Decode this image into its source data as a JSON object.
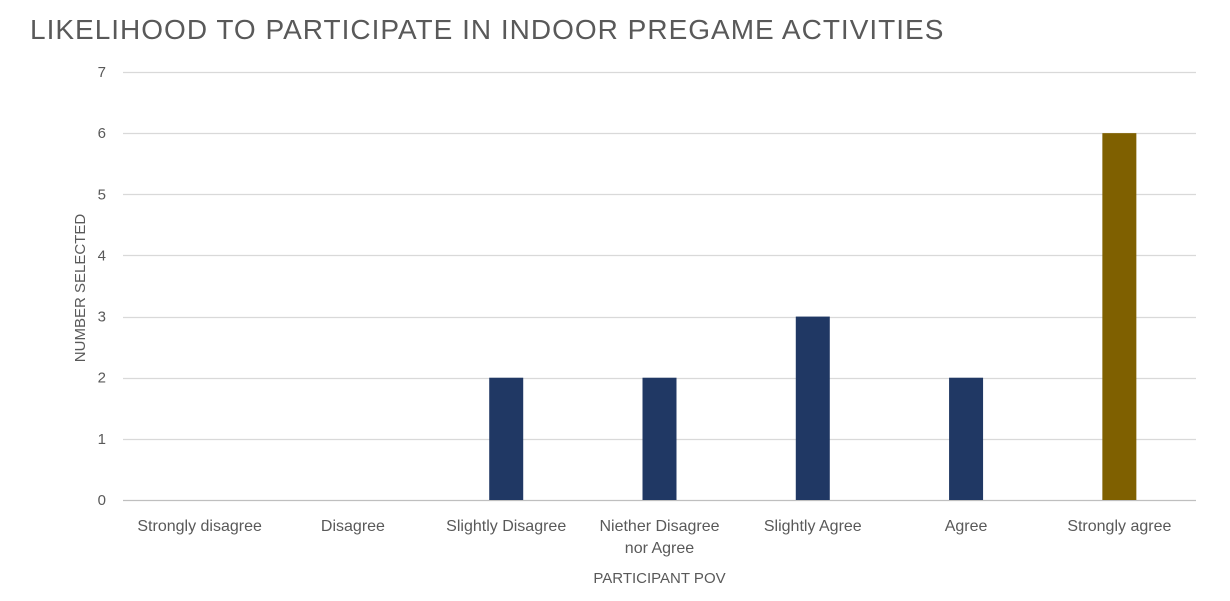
{
  "chart_data": {
    "type": "bar",
    "title": "LIKELIHOOD TO PARTICIPATE IN INDOOR PREGAME ACTIVITIES",
    "xlabel": "PARTICIPANT POV",
    "ylabel": "NUMBER SELECTED",
    "categories": [
      "Strongly disagree",
      "Disagree",
      "Slightly Disagree",
      "Niether Disagree nor Agree",
      "Slightly Agree",
      "Agree",
      "Strongly agree"
    ],
    "category_lines": [
      [
        "Strongly disagree"
      ],
      [
        "Disagree"
      ],
      [
        "Slightly Disagree"
      ],
      [
        "Niether Disagree",
        "nor Agree"
      ],
      [
        "Slightly Agree"
      ],
      [
        "Agree"
      ],
      [
        "Strongly agree"
      ]
    ],
    "values": [
      0,
      0,
      2,
      2,
      3,
      2,
      6
    ],
    "bar_colors": [
      "#203864",
      "#203864",
      "#203864",
      "#203864",
      "#203864",
      "#203864",
      "#7F6000"
    ],
    "ylim": [
      0,
      7
    ],
    "yticks": [
      0,
      1,
      2,
      3,
      4,
      5,
      6,
      7
    ],
    "grid": true,
    "legend": "none",
    "gridline_color": "#D9D9D9",
    "text_color": "#595959"
  }
}
